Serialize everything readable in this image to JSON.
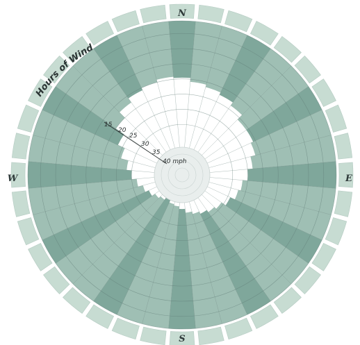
{
  "chart_data": {
    "type": "polar-bar",
    "title": "Hours of Wind",
    "directions": [
      "N",
      "E",
      "S",
      "W"
    ],
    "speed_labels": [
      "15",
      "20",
      "25",
      "30",
      "35",
      "40 mph"
    ],
    "sector_count": 36,
    "radial_extent": [
      0,
      1
    ],
    "sectors_note_values": "value = fraction of full radius that is filled (calm core is white)",
    "values": [
      0.45,
      0.48,
      0.5,
      0.52,
      0.55,
      0.6,
      0.6,
      0.62,
      0.66,
      0.7,
      0.74,
      0.76,
      0.8,
      0.84,
      0.86,
      0.88,
      0.9,
      0.92,
      0.95,
      0.97,
      0.98,
      1.0,
      0.98,
      0.96,
      0.93,
      0.9,
      0.86,
      0.82,
      0.78,
      0.72,
      0.66,
      0.58,
      0.52,
      0.48,
      0.46,
      0.44
    ],
    "grid": true
  },
  "colors": {
    "outer_petal": "#c7dcd2",
    "sector_fill": "#9fbfb4",
    "sector_dark": "#7fa79b",
    "grid_line": "#5f7a74",
    "inner_grid": "#c9d3d1",
    "core": "#ffffff"
  }
}
